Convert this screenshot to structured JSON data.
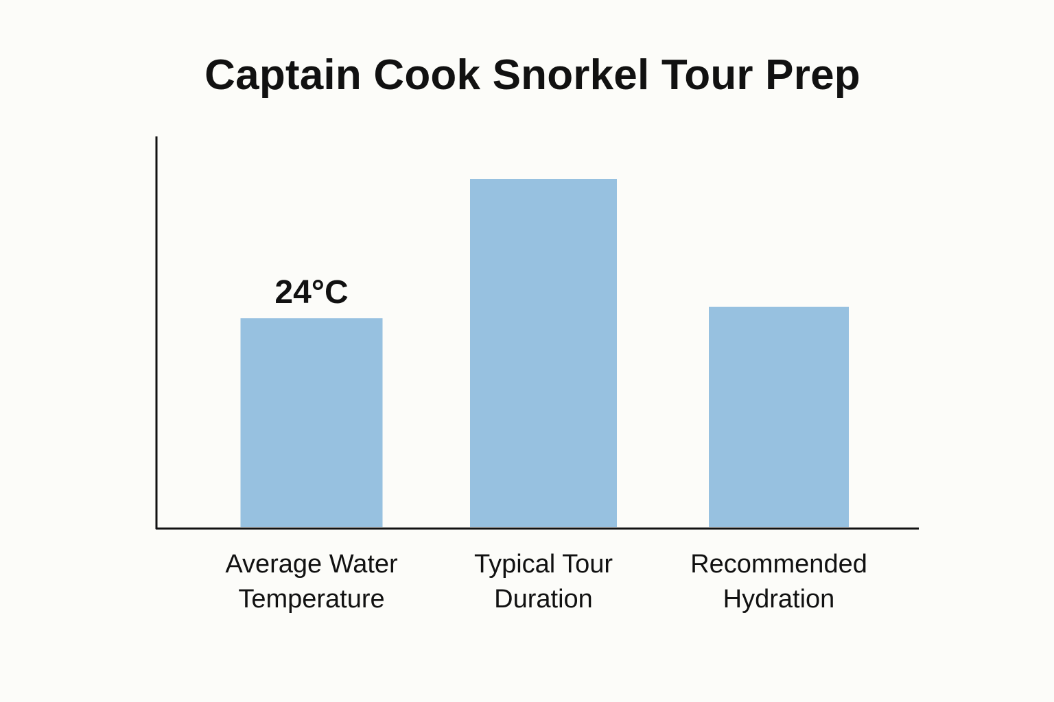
{
  "chart_data": {
    "type": "bar",
    "title": "Captain Cook Snorkel Tour Prep",
    "xlabel": "",
    "ylabel": "",
    "grid": false,
    "legend": false,
    "categories": [
      [
        "Average Water",
        "Temperature"
      ],
      [
        "Typical Tour",
        "Duration"
      ],
      [
        "Recommended",
        "Hydration"
      ]
    ],
    "values": [
      24,
      40,
      25.3
    ],
    "data_labels": [
      "24°C",
      "",
      ""
    ],
    "ylim": [
      0,
      45
    ],
    "bar_color": "#97c1e0",
    "axis_color": "#111111"
  }
}
